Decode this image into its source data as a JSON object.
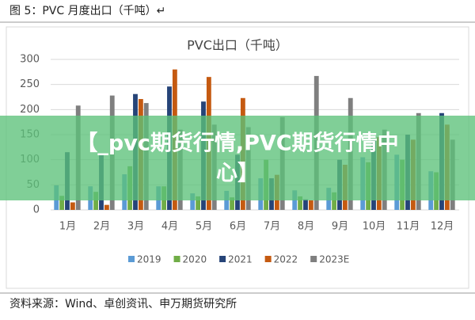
{
  "header": "图 5：PVC 月度出口（千吨）↵",
  "source": "资料来源：Wind、卓创资讯、申万期货研究所",
  "banner": [
    "【_pvc期货行情,PVC期货行情中",
    "心】"
  ],
  "chart_data": {
    "type": "bar",
    "title": "PVC出口（千吨）",
    "categories": [
      "1月",
      "2月",
      "3月",
      "4月",
      "5月",
      "6月",
      "7月",
      "8月",
      "9月",
      "10月",
      "11月",
      "12月"
    ],
    "series": [
      {
        "name": "2019",
        "color": "#5b9bd5",
        "values": [
          49,
          47,
          71,
          47,
          33,
          38,
          63,
          39,
          44,
          105,
          110,
          77
        ]
      },
      {
        "name": "2020",
        "color": "#70ad47",
        "values": [
          28,
          36,
          87,
          47,
          27,
          25,
          100,
          27,
          35,
          95,
          100,
          75
        ]
      },
      {
        "name": "2021",
        "color": "#264478",
        "values": [
          115,
          110,
          231,
          246,
          216,
          110,
          63,
          21,
          100,
          140,
          150,
          193
        ]
      },
      {
        "name": "2022",
        "color": "#c55a11",
        "values": [
          15,
          10,
          221,
          280,
          265,
          223,
          70,
          19,
          90,
          145,
          140,
          170
        ]
      },
      {
        "name": "2023E",
        "color": "#7f7f7f",
        "values": [
          208,
          228,
          213,
          160,
          170,
          165,
          185,
          267,
          223,
          160,
          193,
          140
        ]
      }
    ],
    "ylim": [
      0,
      300
    ],
    "yticks": [
      0,
      50,
      100,
      150,
      200,
      250,
      300
    ],
    "grid": true
  }
}
